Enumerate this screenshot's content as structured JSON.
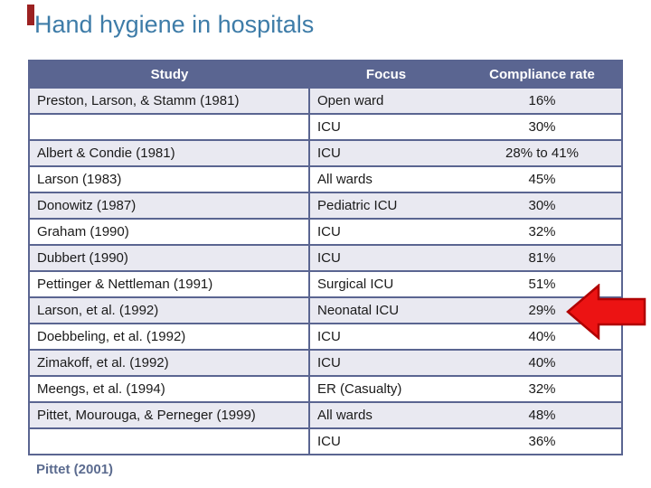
{
  "title": "Hand hygiene in hospitals",
  "title_color": "#3e7ca8",
  "accent_bar_color": "#9c2121",
  "table": {
    "headers": [
      "Study",
      "Focus",
      "Compliance rate"
    ],
    "header_bg": "#5a6591",
    "header_text_color": "#ffffff",
    "border_color": "#5a6591",
    "banded_row_bg": "#e9e9f1",
    "rows": [
      {
        "study": "Preston, Larson, & Stamm (1981)",
        "focus": "Open ward",
        "rate": "16%",
        "banded": true
      },
      {
        "study": "",
        "focus": "ICU",
        "rate": "30%",
        "banded": false
      },
      {
        "study": "Albert & Condie (1981)",
        "focus": "ICU",
        "rate": "28% to 41%",
        "banded": true
      },
      {
        "study": "Larson (1983)",
        "focus": "All wards",
        "rate": "45%",
        "banded": false
      },
      {
        "study": "Donowitz (1987)",
        "focus": "Pediatric ICU",
        "rate": "30%",
        "banded": true
      },
      {
        "study": "Graham (1990)",
        "focus": "ICU",
        "rate": "32%",
        "banded": false
      },
      {
        "study": "Dubbert (1990)",
        "focus": "ICU",
        "rate": "81%",
        "banded": true
      },
      {
        "study": "Pettinger & Nettleman (1991)",
        "focus": "Surgical ICU",
        "rate": "51%",
        "banded": false
      },
      {
        "study": "Larson, et al. (1992)",
        "focus": "Neonatal ICU",
        "rate": "29%",
        "banded": true
      },
      {
        "study": "Doebbeling, et al. (1992)",
        "focus": "ICU",
        "rate": "40%",
        "banded": false
      },
      {
        "study": "Zimakoff, et al. (1992)",
        "focus": "ICU",
        "rate": "40%",
        "banded": true
      },
      {
        "study": "Meengs, et al. (1994)",
        "focus": "ER (Casualty)",
        "rate": "32%",
        "banded": false
      },
      {
        "study": "Pittet, Mourouga, & Perneger (1999)",
        "focus": "All wards",
        "rate": "48%",
        "banded": true
      },
      {
        "study": "",
        "focus": "ICU",
        "rate": "36%",
        "banded": false
      }
    ]
  },
  "chart_data": {
    "type": "table",
    "title": "Hand hygiene in hospitals",
    "columns": [
      "Study",
      "Focus",
      "Compliance rate"
    ],
    "rows": [
      [
        "Preston, Larson, & Stamm (1981)",
        "Open ward",
        "16%"
      ],
      [
        "",
        "ICU",
        "30%"
      ],
      [
        "Albert & Condie (1981)",
        "ICU",
        "28% to 41%"
      ],
      [
        "Larson (1983)",
        "All wards",
        "45%"
      ],
      [
        "Donowitz (1987)",
        "Pediatric ICU",
        "30%"
      ],
      [
        "Graham (1990)",
        "ICU",
        "32%"
      ],
      [
        "Dubbert (1990)",
        "ICU",
        "81%"
      ],
      [
        "Pettinger & Nettleman (1991)",
        "Surgical ICU",
        "51%"
      ],
      [
        "Larson, et al. (1992)",
        "Neonatal ICU",
        "29%"
      ],
      [
        "Doebbeling, et al. (1992)",
        "ICU",
        "40%"
      ],
      [
        "Zimakoff, et al. (1992)",
        "ICU",
        "40%"
      ],
      [
        "Meengs, et al. (1994)",
        "ER (Casualty)",
        "32%"
      ],
      [
        "Pittet, Mourouga, & Perneger (1999)",
        "All wards",
        "48%"
      ],
      [
        "",
        "ICU",
        "36%"
      ]
    ]
  },
  "annotation_arrow": {
    "direction": "left",
    "fill_color": "#ec1313",
    "outline_color": "#b00000",
    "points_to_row": "Larson, et al. (1992) | Neonatal ICU | 29%"
  },
  "footer": {
    "citation": "Pittet (2001)",
    "color": "#5b6b8f"
  }
}
